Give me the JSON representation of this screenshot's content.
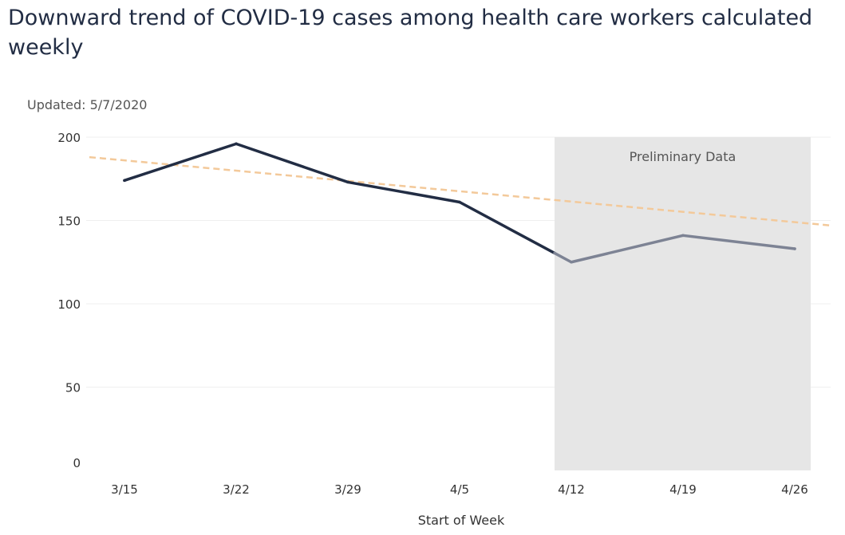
{
  "header": {
    "title": "Downward trend of COVID-19 cases among health care workers calculated weekly",
    "updated": "Updated: 5/7/2020"
  },
  "chart_data": {
    "type": "line",
    "title": "Downward trend of COVID-19 cases among health care workers calculated weekly",
    "xlabel": "Start of Week",
    "ylabel": "",
    "categories": [
      "3/15",
      "3/22",
      "3/29",
      "4/5",
      "4/12",
      "4/19",
      "4/26"
    ],
    "yticks": [
      0,
      50,
      100,
      150,
      200
    ],
    "ylim": [
      0,
      200
    ],
    "grid": true,
    "series": [
      {
        "values": [
          174,
          196,
          173,
          161,
          125,
          141,
          133
        ],
        "color": "#222d44",
        "preliminary_color": "#7d8394"
      }
    ],
    "trendline": {
      "start": 188,
      "end": 147,
      "color": "#f3c99a",
      "style": "dashed"
    },
    "preliminary_region": {
      "label": "Preliminary Data",
      "from_category": "4/12",
      "to_category": "4/26",
      "color": "#e6e6e6"
    }
  }
}
